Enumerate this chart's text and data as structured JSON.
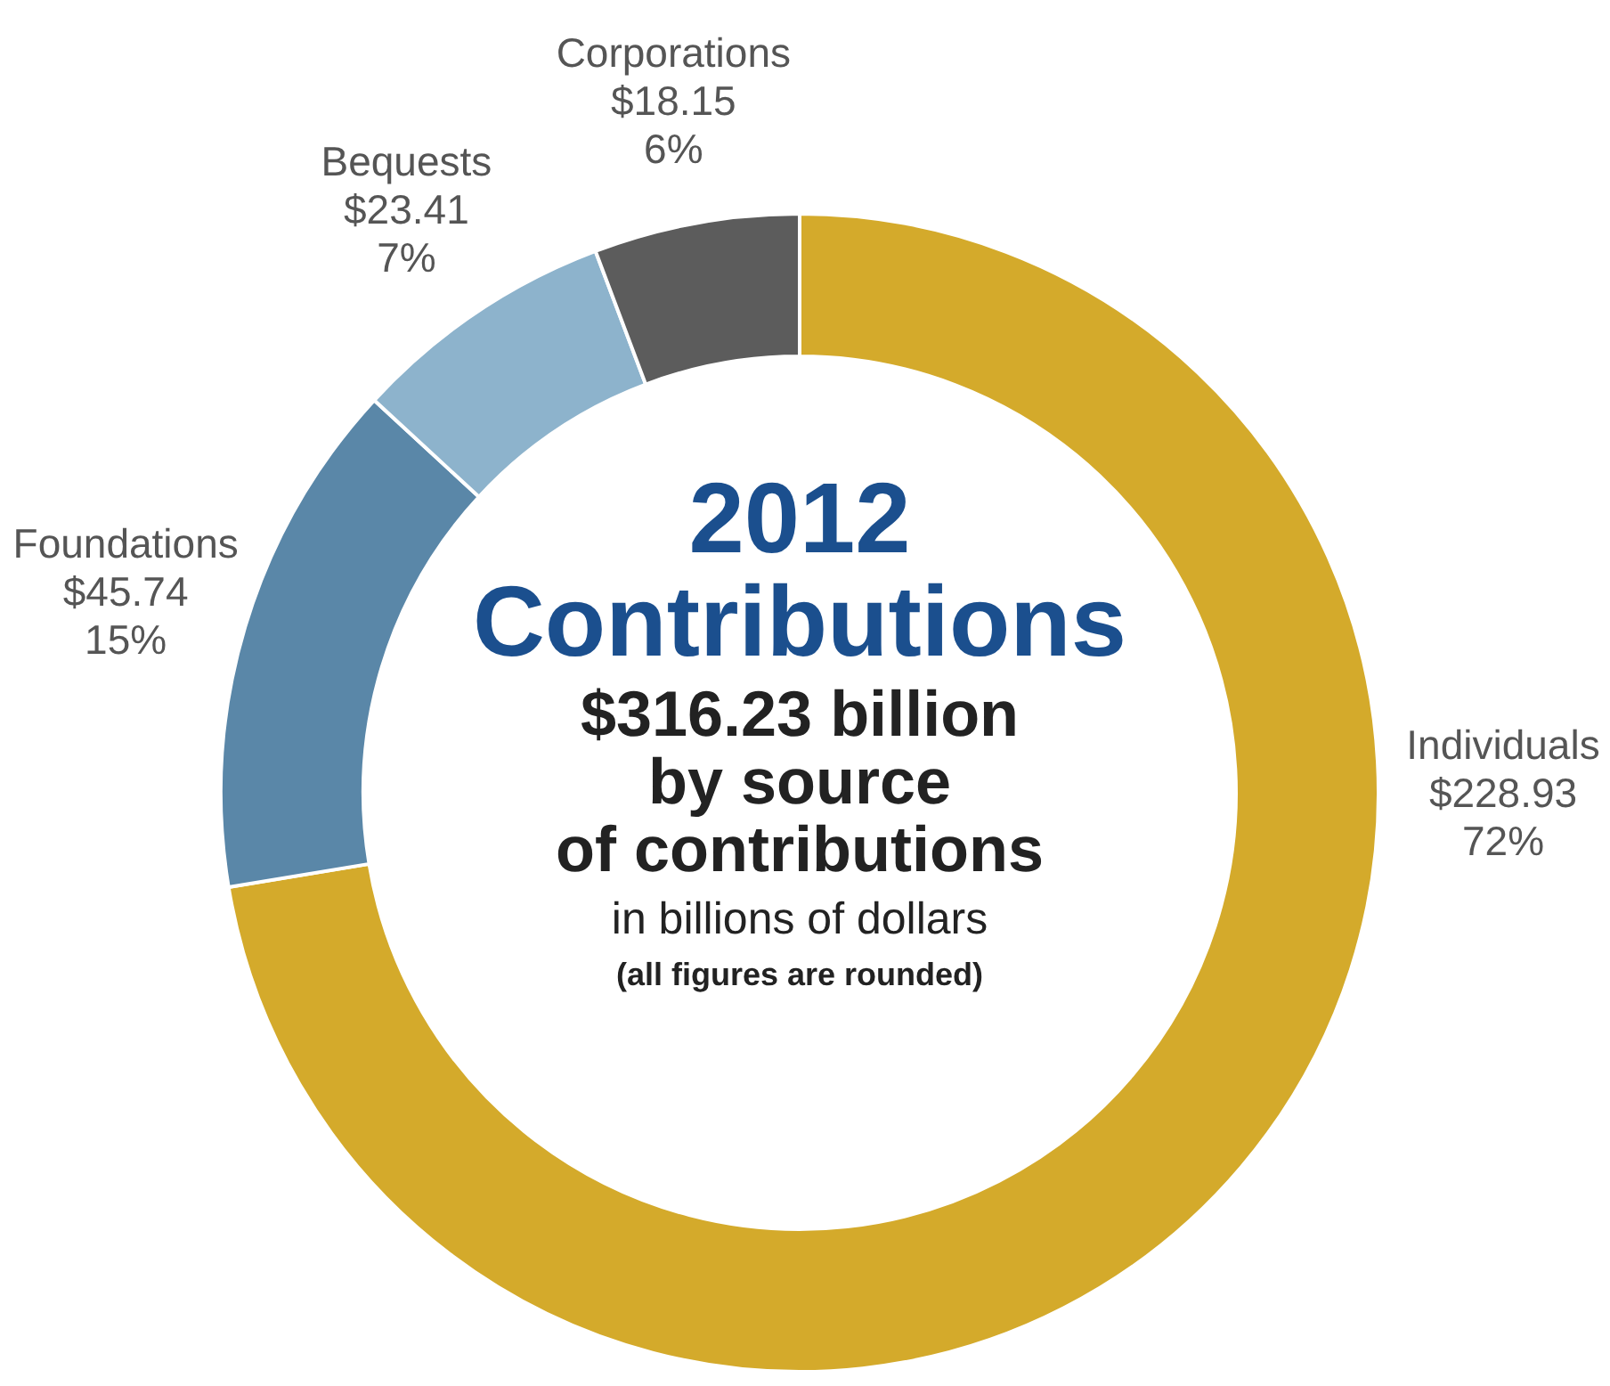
{
  "chart_data": {
    "type": "donut",
    "title": "2012 Contributions",
    "subtitle": "$316.23 billion by source of contributions",
    "annotations": [
      "in billions of dollars",
      "(all figures are rounded)"
    ],
    "categories": [
      "Individuals",
      "Foundations",
      "Bequests",
      "Corporations"
    ],
    "values": [
      228.93,
      45.74,
      23.41,
      18.15
    ],
    "colors": [
      "#d4aa2b",
      "#5a87a8",
      "#8db3cc",
      "#5c5c5c"
    ],
    "value_labels": [
      "$228.93\n72%",
      "$45.74\n15%",
      "$23.41\n7%",
      "$18.15\n6%"
    ]
  }
}
